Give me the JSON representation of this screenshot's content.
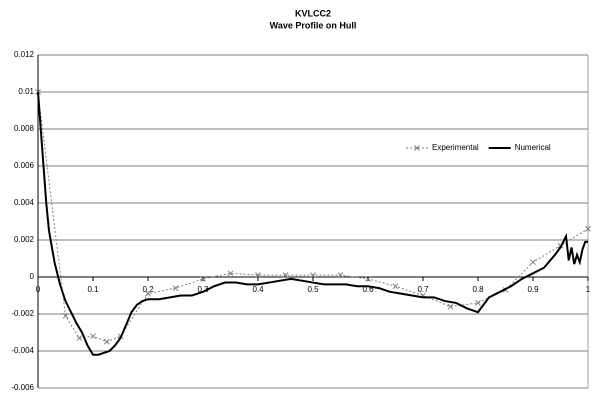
{
  "chart_data": {
    "type": "line",
    "title": "KVLCC2",
    "subtitle": "Wave Profile on Hull",
    "xlim": [
      0,
      1
    ],
    "xticks": [
      0,
      0.1,
      0.2,
      0.3,
      0.4,
      0.5,
      0.6,
      0.7,
      0.8,
      0.9,
      1
    ],
    "ylim": [
      -0.006,
      0.012
    ],
    "yticks": [
      -0.006,
      -0.004,
      -0.002,
      0,
      0.002,
      0.004,
      0.006,
      0.008,
      0.01,
      0.012
    ],
    "grid": true,
    "legend": "right",
    "series": [
      {
        "name": "Experimental",
        "color": "#808080",
        "style": "dotted",
        "marker": "x",
        "x": [
          0,
          0.05,
          0.075,
          0.1,
          0.125,
          0.15,
          0.2,
          0.25,
          0.3,
          0.35,
          0.4,
          0.45,
          0.5,
          0.55,
          0.6,
          0.65,
          0.7,
          0.75,
          0.8,
          0.85,
          0.9,
          0.95,
          1
        ],
        "values": [
          0.01,
          -0.0021,
          -0.0033,
          -0.0032,
          -0.0035,
          -0.0032,
          -0.0009,
          -0.0006,
          -0.0001,
          0.0002,
          0.0001,
          0.0001,
          0.0001,
          0.0001,
          -0.0001,
          -0.0005,
          -0.001,
          -0.0016,
          -0.0014,
          -0.0007,
          0.0008,
          0.0017,
          0.0026
        ]
      },
      {
        "name": "Numerical",
        "color": "#000000",
        "style": "solid",
        "marker": "none",
        "x": [
          0,
          0.005,
          0.01,
          0.015,
          0.02,
          0.03,
          0.04,
          0.05,
          0.06,
          0.07,
          0.08,
          0.09,
          0.1,
          0.11,
          0.12,
          0.13,
          0.14,
          0.15,
          0.16,
          0.17,
          0.18,
          0.19,
          0.2,
          0.22,
          0.24,
          0.26,
          0.28,
          0.3,
          0.32,
          0.34,
          0.36,
          0.38,
          0.4,
          0.42,
          0.44,
          0.46,
          0.48,
          0.5,
          0.52,
          0.54,
          0.56,
          0.58,
          0.6,
          0.62,
          0.64,
          0.66,
          0.68,
          0.7,
          0.72,
          0.74,
          0.76,
          0.78,
          0.8,
          0.81,
          0.82,
          0.84,
          0.86,
          0.88,
          0.9,
          0.92,
          0.94,
          0.95,
          0.96,
          0.965,
          0.97,
          0.975,
          0.98,
          0.985,
          0.99,
          0.995,
          1
        ],
        "values": [
          0.01,
          0.008,
          0.006,
          0.004,
          0.0025,
          0.0008,
          -0.0004,
          -0.0013,
          -0.0019,
          -0.0025,
          -0.003,
          -0.0037,
          -0.0042,
          -0.0042,
          -0.0041,
          -0.004,
          -0.0037,
          -0.0033,
          -0.0026,
          -0.0019,
          -0.0015,
          -0.0013,
          -0.0012,
          -0.0012,
          -0.0011,
          -0.001,
          -0.001,
          -0.0008,
          -0.0005,
          -0.0003,
          -0.0003,
          -0.0004,
          -0.0004,
          -0.0003,
          -0.0002,
          -0.0001,
          -0.0002,
          -0.0003,
          -0.0004,
          -0.0004,
          -0.0004,
          -0.0005,
          -0.0005,
          -0.0006,
          -0.0008,
          -0.0009,
          -0.001,
          -0.0011,
          -0.0011,
          -0.0013,
          -0.0014,
          -0.0017,
          -0.0019,
          -0.0015,
          -0.0011,
          -0.0008,
          -0.0005,
          -0.0001,
          0.0002,
          0.0005,
          0.0012,
          0.0016,
          0.0022,
          0.0009,
          0.0016,
          0.0007,
          0.0012,
          0.0008,
          0.0015,
          0.0019,
          0.0019
        ]
      }
    ]
  }
}
